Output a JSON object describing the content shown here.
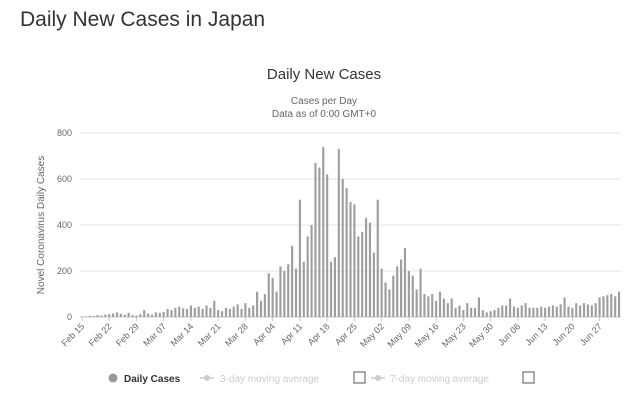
{
  "page": {
    "title": "Daily New Cases in Japan"
  },
  "chart_data": {
    "type": "bar",
    "title": "Daily New Cases",
    "subtitle_lines": [
      "Cases per Day",
      "Data as of 0:00 GMT+0"
    ],
    "ylabel": "Novel Coronavirus Daily Cases",
    "ylim": [
      0,
      800
    ],
    "yticks": [
      0,
      200,
      400,
      600,
      800
    ],
    "grid": true,
    "bar_color": "#9e9e9e",
    "x_tick_labels": [
      "Feb 15",
      "Feb 22",
      "Feb 29",
      "Mar 07",
      "Mar 14",
      "Mar 21",
      "Mar 28",
      "Apr 04",
      "Apr 11",
      "Apr 18",
      "Apr 25",
      "May 02",
      "May 09",
      "May 16",
      "May 23",
      "May 30",
      "Jun 06",
      "Jun 13",
      "Jun 20",
      "Jun 27"
    ],
    "start_date": "Feb 15",
    "values": [
      2,
      3,
      5,
      4,
      8,
      6,
      10,
      12,
      15,
      20,
      14,
      10,
      18,
      8,
      6,
      12,
      30,
      15,
      10,
      20,
      18,
      22,
      35,
      30,
      40,
      45,
      38,
      35,
      50,
      40,
      45,
      35,
      50,
      40,
      70,
      30,
      25,
      40,
      35,
      45,
      55,
      35,
      60,
      40,
      50,
      110,
      70,
      100,
      190,
      170,
      110,
      220,
      200,
      230,
      310,
      210,
      510,
      240,
      350,
      400,
      670,
      650,
      740,
      620,
      240,
      260,
      730,
      600,
      560,
      500,
      490,
      350,
      370,
      430,
      410,
      280,
      510,
      210,
      150,
      120,
      180,
      220,
      250,
      300,
      200,
      180,
      120,
      210,
      100,
      90,
      100,
      70,
      110,
      80,
      60,
      80,
      40,
      50,
      30,
      60,
      40,
      40,
      85,
      30,
      20,
      25,
      30,
      40,
      50,
      50,
      80,
      45,
      40,
      50,
      60,
      40,
      40,
      40,
      45,
      40,
      45,
      50,
      45,
      55,
      85,
      45,
      40,
      60,
      50,
      60,
      55,
      50,
      60,
      85,
      90,
      95,
      100,
      90,
      110
    ],
    "legend": [
      {
        "label": "Daily Cases",
        "color": "#999999",
        "active": true
      },
      {
        "label": "3-day moving average",
        "color": "#cccccc",
        "active": false
      },
      {
        "label": "7-day moving average",
        "color": "#cccccc",
        "active": false
      }
    ]
  }
}
